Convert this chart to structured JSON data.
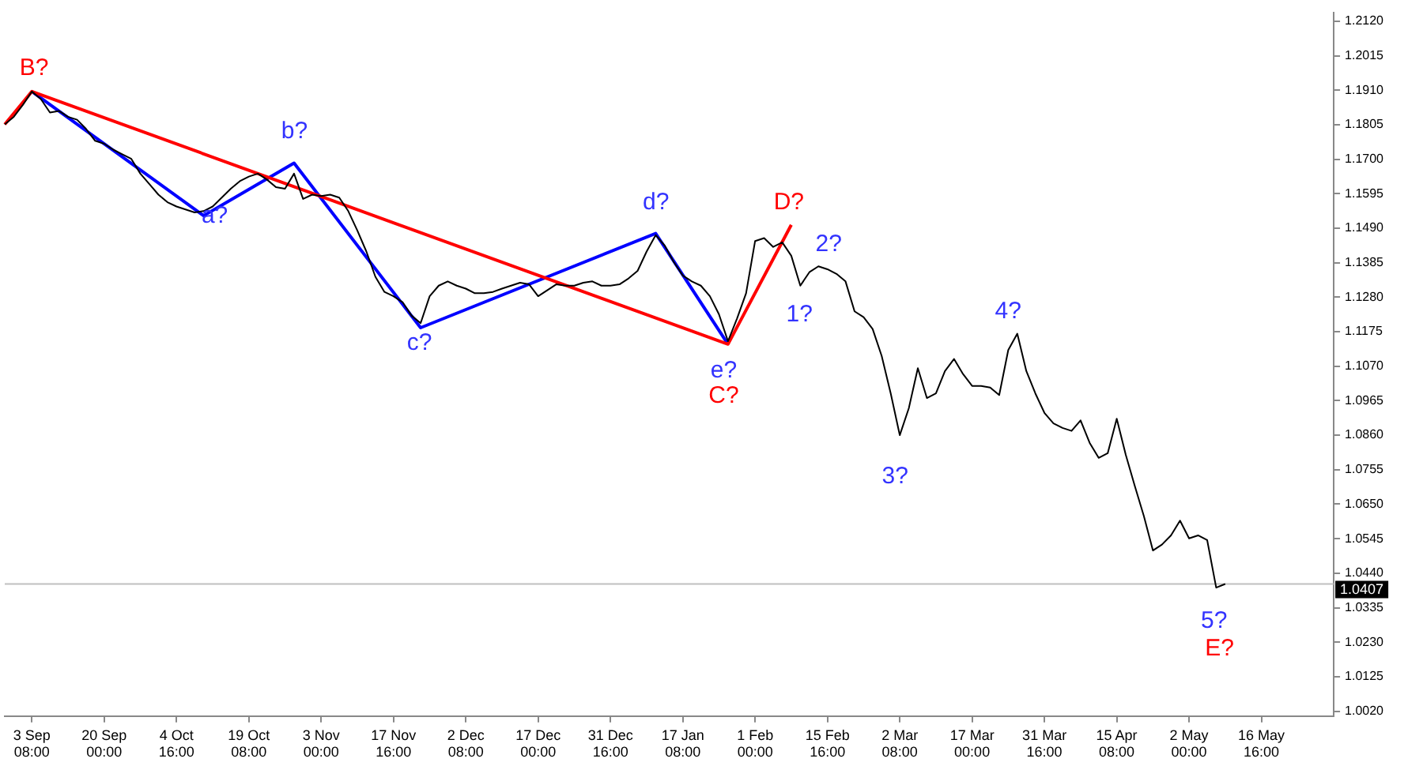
{
  "chart_data": {
    "type": "line",
    "categories": [
      null,
      null,
      null,
      "3 Sep 08:00",
      null,
      null,
      null,
      null,
      null,
      null,
      null,
      "20 Sep 00:00",
      null,
      null,
      null,
      null,
      null,
      null,
      null,
      "4 Oct 16:00",
      null,
      null,
      null,
      null,
      null,
      null,
      null,
      "19 Oct 08:00",
      null,
      null,
      null,
      null,
      null,
      null,
      null,
      "3 Nov 00:00",
      null,
      null,
      null,
      null,
      null,
      null,
      null,
      "17 Nov 16:00",
      null,
      null,
      null,
      null,
      null,
      null,
      null,
      "2 Dec 08:00",
      null,
      null,
      null,
      null,
      null,
      null,
      null,
      "17 Dec 00:00",
      null,
      null,
      null,
      null,
      null,
      null,
      null,
      "31 Dec 16:00",
      null,
      null,
      null,
      null,
      null,
      null,
      null,
      "17 Jan 08:00",
      null,
      null,
      null,
      null,
      null,
      null,
      null,
      "1 Feb 00:00",
      null,
      null,
      null,
      null,
      null,
      null,
      null,
      "15 Feb 16:00",
      null,
      null,
      null,
      null,
      null,
      null,
      null,
      "2 Mar 08:00",
      null,
      null,
      null,
      null,
      null,
      null,
      null,
      "17 Mar 00:00",
      null,
      null,
      null,
      null,
      null,
      null,
      null,
      "31 Mar 16:00",
      null,
      null,
      null,
      null,
      null,
      null,
      null,
      "15 Apr 08:00",
      null,
      null,
      null,
      null,
      null,
      null,
      null,
      "2 May 00:00",
      null,
      null,
      null,
      null,
      null,
      null,
      null,
      "16 May 16:00",
      null,
      null,
      null,
      null,
      null,
      null,
      null,
      null
    ],
    "series": [
      {
        "color": "#000000",
        "values": [
          1.1806,
          1.1829,
          1.1865,
          1.1906,
          1.1883,
          1.1842,
          1.1847,
          1.1829,
          1.182,
          1.1792,
          1.1756,
          1.1747,
          1.1729,
          1.1715,
          1.1701,
          1.1656,
          1.1624,
          1.1592,
          1.1569,
          1.1556,
          1.1547,
          1.1538,
          1.1542,
          1.1556,
          1.1583,
          1.161,
          1.1633,
          1.1647,
          1.1656,
          1.1638,
          1.1615,
          1.161,
          1.1656,
          1.1579,
          1.1592,
          1.1588,
          1.1592,
          1.1583,
          1.1542,
          1.1483,
          1.1419,
          1.1342,
          1.1296,
          1.1283,
          1.1265,
          1.1224,
          1.1201,
          1.1283,
          1.1315,
          1.1328,
          1.1315,
          1.1306,
          1.1292,
          1.1292,
          1.1296,
          1.1306,
          1.1315,
          1.1324,
          1.1319,
          1.1283,
          1.1301,
          1.1319,
          1.1315,
          1.1315,
          1.1324,
          1.1328,
          1.1315,
          1.1315,
          1.1319,
          1.1337,
          1.136,
          1.1419,
          1.1469,
          1.1437,
          1.1387,
          1.1346,
          1.1328,
          1.1315,
          1.1283,
          1.1228,
          1.1146,
          1.1215,
          1.1292,
          1.1451,
          1.146,
          1.1433,
          1.1447,
          1.1406,
          1.1315,
          1.1356,
          1.1374,
          1.1365,
          1.1351,
          1.1328,
          1.1237,
          1.1219,
          1.1183,
          1.1101,
          1.0987,
          1.086,
          1.0942,
          1.1064,
          1.0973,
          1.0987,
          1.1055,
          1.1092,
          1.1046,
          1.101,
          1.101,
          1.1005,
          1.0982,
          1.1119,
          1.1169,
          1.1055,
          1.0987,
          1.0928,
          1.0896,
          1.0882,
          1.0873,
          1.0905,
          1.0837,
          1.0791,
          1.0805,
          1.091,
          1.08,
          1.0705,
          1.0614,
          1.0509,
          1.0527,
          1.0555,
          1.06,
          1.0546,
          1.0555,
          1.0541,
          1.0396,
          1.0407,
          null,
          null,
          null,
          null,
          null,
          null,
          null,
          null,
          null,
          null,
          null,
          null
        ]
      },
      {
        "color": "#ff0000",
        "values": [
          1.1806,
          null,
          null,
          1.1906,
          null,
          null,
          null,
          null,
          null,
          null,
          null,
          null,
          null,
          null,
          null,
          null,
          null,
          null,
          null,
          null,
          null,
          null,
          null,
          null,
          null,
          null,
          null,
          null,
          null,
          null,
          null,
          null,
          null,
          null,
          null,
          null,
          null,
          null,
          null,
          null,
          null,
          null,
          null,
          null,
          null,
          null,
          null,
          null,
          null,
          null,
          null,
          null,
          null,
          null,
          null,
          null,
          null,
          null,
          null,
          null,
          null,
          null,
          null,
          null,
          null,
          null,
          null,
          null,
          null,
          null,
          null,
          null,
          null,
          null,
          null,
          null,
          null,
          null,
          null,
          null,
          1.1137,
          null,
          null,
          null,
          null,
          null,
          null,
          1.15,
          null,
          null,
          null,
          null,
          null,
          null,
          null,
          null,
          null,
          null,
          null,
          null,
          null,
          null,
          null,
          null,
          null,
          null,
          null,
          null,
          null,
          null,
          null,
          null,
          null,
          null,
          null,
          null,
          null,
          null,
          null,
          null,
          null,
          null,
          null,
          null,
          null,
          null,
          null,
          null,
          null,
          null,
          null,
          null,
          null,
          null,
          null,
          null,
          null,
          null,
          null,
          null,
          null,
          null,
          null,
          null,
          null,
          null,
          null,
          null
        ]
      },
      {
        "color": "#0000ff",
        "values": [
          null,
          null,
          null,
          1.1906,
          null,
          null,
          null,
          null,
          null,
          null,
          null,
          null,
          null,
          null,
          null,
          null,
          null,
          null,
          null,
          null,
          null,
          null,
          1.1528,
          null,
          null,
          null,
          null,
          null,
          null,
          null,
          null,
          null,
          1.1688,
          null,
          null,
          null,
          null,
          null,
          null,
          null,
          null,
          null,
          null,
          null,
          null,
          null,
          1.1187,
          null,
          null,
          null,
          null,
          null,
          null,
          null,
          null,
          null,
          null,
          null,
          null,
          null,
          null,
          null,
          null,
          null,
          null,
          null,
          null,
          null,
          null,
          null,
          null,
          null,
          1.1474,
          null,
          null,
          null,
          null,
          null,
          null,
          null,
          1.1137,
          null,
          null,
          null,
          null,
          null,
          null,
          null,
          null,
          null,
          null,
          null,
          null,
          null,
          null,
          null,
          null,
          null,
          null,
          null,
          null,
          null,
          null,
          null,
          null,
          null,
          null,
          null,
          null,
          null,
          null,
          null,
          null,
          null,
          null,
          null,
          null,
          null,
          null,
          null,
          null,
          null,
          null,
          null,
          null,
          null,
          null,
          null,
          null,
          null,
          null,
          null,
          null,
          null,
          null,
          null,
          null,
          null,
          null,
          null,
          null,
          null,
          null,
          null,
          null,
          null,
          null,
          null
        ]
      }
    ],
    "ylim": [
      1.0005,
      1.2147
    ],
    "yticks": [
      {
        "value": 1.002,
        "label": "1.0020"
      },
      {
        "value": 1.0125,
        "label": "1.0125"
      },
      {
        "value": 1.023,
        "label": "1.0230"
      },
      {
        "value": 1.0335,
        "label": "1.0335"
      },
      {
        "value": 1.044,
        "label": "1.0440"
      },
      {
        "value": 1.0545,
        "label": "1.0545"
      },
      {
        "value": 1.065,
        "label": "1.0650"
      },
      {
        "value": 1.0755,
        "label": "1.0755"
      },
      {
        "value": 1.086,
        "label": "1.0860"
      },
      {
        "value": 1.0965,
        "label": "1.0965"
      },
      {
        "value": 1.107,
        "label": "1.1070"
      },
      {
        "value": 1.1175,
        "label": "1.1175"
      },
      {
        "value": 1.128,
        "label": "1.1280"
      },
      {
        "value": 1.1385,
        "label": "1.1385"
      },
      {
        "value": 1.149,
        "label": "1.1490"
      },
      {
        "value": 1.1595,
        "label": "1.1595"
      },
      {
        "value": 1.17,
        "label": "1.1700"
      },
      {
        "value": 1.1805,
        "label": "1.1805"
      },
      {
        "value": 1.191,
        "label": "1.1910"
      },
      {
        "value": 1.2015,
        "label": "1.2015"
      },
      {
        "value": 1.212,
        "label": "1.2120"
      }
    ],
    "ref_lines": [
      {
        "axis": "y",
        "value": 1.0407,
        "label": "1.0407",
        "color": "#c0c0c0"
      }
    ],
    "annotations": [
      "B?",
      "a?",
      "b?",
      "c?",
      "d?",
      "e?",
      "C?",
      "D?",
      "1?",
      "2?",
      "3?",
      "4?",
      "5?",
      "E?"
    ],
    "grid": false,
    "legend": false
  }
}
